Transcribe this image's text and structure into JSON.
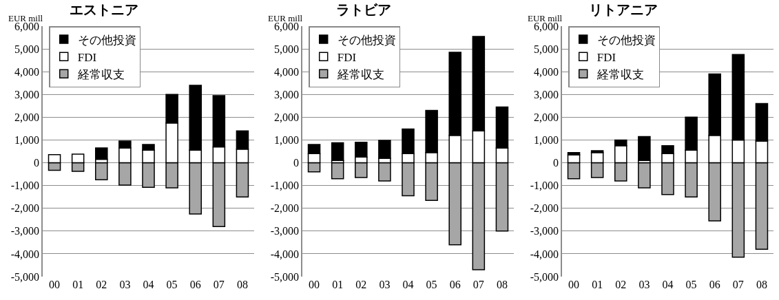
{
  "chart_data": [
    {
      "type": "bar",
      "title": "エストニア",
      "ylabel": "EUR mill",
      "categories": [
        "00",
        "01",
        "02",
        "03",
        "04",
        "05",
        "06",
        "07",
        "08"
      ],
      "stacked": true,
      "grid": "y",
      "legend": "top left",
      "ylim": [
        -5000,
        6000
      ],
      "yticks": [
        {
          "value": -5000,
          "label": "-5,000"
        },
        {
          "value": -4000,
          "label": "-4,000"
        },
        {
          "value": -3000,
          "label": "-3,000"
        },
        {
          "value": -2000,
          "label": "-2,000"
        },
        {
          "value": -1000,
          "label": "-1,000"
        },
        {
          "value": 0,
          "label": "0"
        },
        {
          "value": 1000,
          "label": "1,000"
        },
        {
          "value": 2000,
          "label": "2,000"
        },
        {
          "value": 3000,
          "label": "3,000"
        },
        {
          "value": 4000,
          "label": "4,000"
        },
        {
          "value": 5000,
          "label": "5,000"
        },
        {
          "value": 6000,
          "label": "6,000"
        }
      ],
      "series": [
        {
          "name": "経常収支",
          "color": "#a6a6a6",
          "values": [
            -330,
            -380,
            -750,
            -980,
            -1080,
            -1100,
            -2250,
            -2800,
            -1500
          ]
        },
        {
          "name": "FDI",
          "color": "#ffffff",
          "values": [
            360,
            380,
            150,
            650,
            550,
            1750,
            550,
            700,
            600
          ]
        },
        {
          "name": "その他投資",
          "color": "#000000",
          "values": [
            null,
            null,
            500,
            300,
            250,
            1250,
            2850,
            2250,
            800
          ]
        }
      ]
    },
    {
      "type": "bar",
      "title": "ラトビア",
      "ylabel": "EUR mill",
      "categories": [
        "00",
        "01",
        "02",
        "03",
        "04",
        "05",
        "06",
        "07",
        "08"
      ],
      "stacked": true,
      "grid": "y",
      "legend": "top left",
      "ylim": [
        -5000,
        6000
      ],
      "yticks": [
        {
          "value": -5000,
          "label": "-5,000"
        },
        {
          "value": -4000,
          "label": "-4,000"
        },
        {
          "value": -3000,
          "label": "-3,000"
        },
        {
          "value": -2000,
          "label": "-2,000"
        },
        {
          "value": -1000,
          "label": "-1,000"
        },
        {
          "value": 0,
          "label": "0"
        },
        {
          "value": 1000,
          "label": "1,000"
        },
        {
          "value": 2000,
          "label": "2,000"
        },
        {
          "value": 3000,
          "label": "3,000"
        },
        {
          "value": 4000,
          "label": "4,000"
        },
        {
          "value": 5000,
          "label": "5,000"
        },
        {
          "value": 6000,
          "label": "6,000"
        }
      ],
      "series": [
        {
          "name": "経常収支",
          "color": "#a6a6a6",
          "values": [
            -400,
            -700,
            -650,
            -800,
            -1450,
            -1650,
            -3600,
            -4700,
            -3000
          ]
        },
        {
          "name": "FDI",
          "color": "#ffffff",
          "values": [
            400,
            100,
            250,
            200,
            400,
            450,
            1200,
            1400,
            650
          ]
        },
        {
          "name": "その他投資",
          "color": "#000000",
          "values": [
            400,
            780,
            650,
            780,
            1080,
            1850,
            3650,
            4150,
            1800
          ]
        }
      ]
    },
    {
      "type": "bar",
      "title": "リトアニア",
      "ylabel": "EUR mill",
      "categories": [
        "00",
        "01",
        "02",
        "03",
        "04",
        "05",
        "06",
        "07",
        "08"
      ],
      "stacked": true,
      "grid": "y",
      "legend": "top left",
      "ylim": [
        -5000,
        6000
      ],
      "yticks": [
        {
          "value": -5000,
          "label": "-5,000"
        },
        {
          "value": -4000,
          "label": "-4,000"
        },
        {
          "value": -3000,
          "label": "-3,000"
        },
        {
          "value": -2000,
          "label": "-2,000"
        },
        {
          "value": -1000,
          "label": "-1,000"
        },
        {
          "value": 0,
          "label": "0"
        },
        {
          "value": 1000,
          "label": "1,000"
        },
        {
          "value": 2000,
          "label": "2,000"
        },
        {
          "value": 3000,
          "label": "3,000"
        },
        {
          "value": 4000,
          "label": "4,000"
        },
        {
          "value": 5000,
          "label": "5,000"
        },
        {
          "value": 6000,
          "label": "6,000"
        }
      ],
      "series": [
        {
          "name": "経常収支",
          "color": "#a6a6a6",
          "values": [
            -700,
            -650,
            -800,
            -1100,
            -1400,
            -1500,
            -2550,
            -4150,
            -3800
          ]
        },
        {
          "name": "FDI",
          "color": "#ffffff",
          "values": [
            350,
            450,
            750,
            100,
            400,
            550,
            1200,
            1000,
            950
          ]
        },
        {
          "name": "その他投資",
          "color": "#000000",
          "values": [
            100,
            80,
            250,
            1050,
            350,
            1450,
            2700,
            3750,
            1650
          ]
        }
      ]
    }
  ]
}
